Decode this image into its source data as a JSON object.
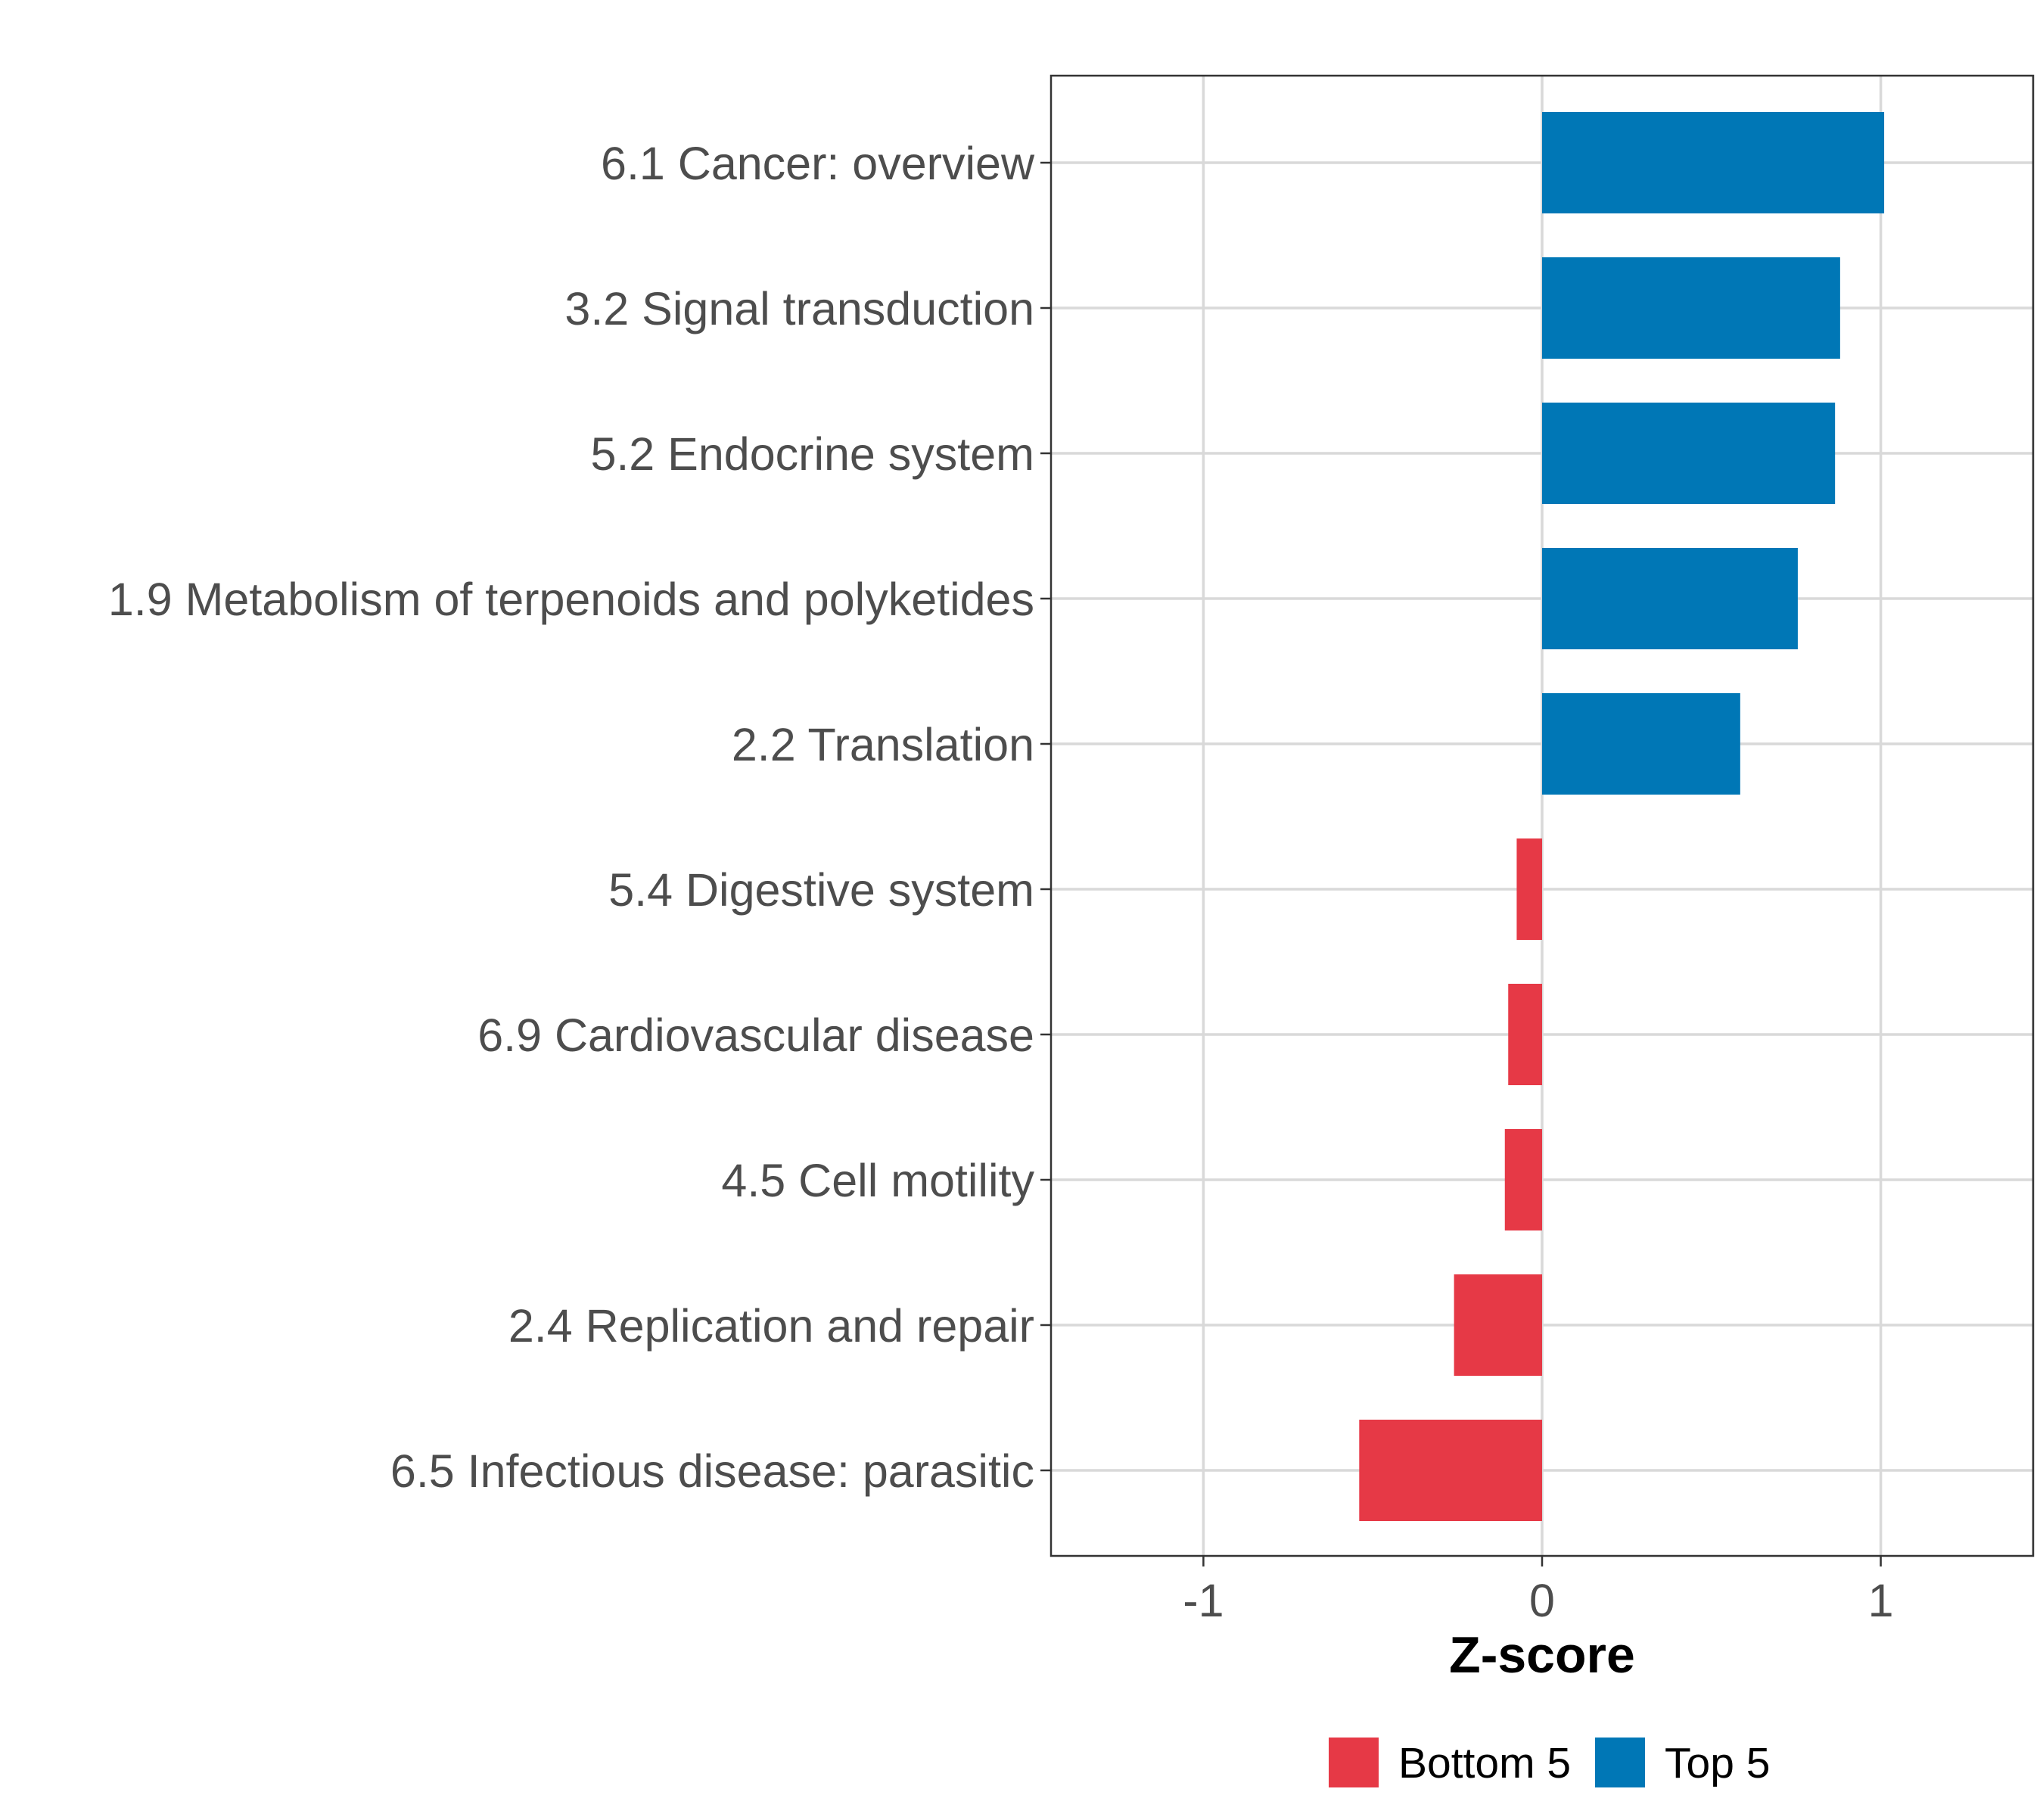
{
  "chart_data": {
    "type": "bar",
    "orientation": "horizontal",
    "xlabel": "Z-score",
    "ylabel": "",
    "xlim": [
      -1.45,
      1.45
    ],
    "xticks": [
      -1,
      0,
      1
    ],
    "grid": true,
    "legend_position": "bottom",
    "categories": [
      "6.1 Cancer: overview",
      "3.2 Signal transduction",
      "5.2 Endocrine system",
      "1.9 Metabolism of terpenoids and polyketides",
      "2.2 Translation",
      "5.4 Digestive system",
      "6.9 Cardiovascular disease",
      "4.5 Cell motility",
      "2.4 Replication and repair",
      "6.5 Infectious disease: parasitic"
    ],
    "values": [
      1.01,
      0.88,
      0.865,
      0.755,
      0.585,
      -0.075,
      -0.1,
      -0.11,
      -0.26,
      -0.54
    ],
    "groups": [
      "Top 5",
      "Top 5",
      "Top 5",
      "Top 5",
      "Top 5",
      "Bottom 5",
      "Bottom 5",
      "Bottom 5",
      "Bottom 5",
      "Bottom 5"
    ],
    "legend": [
      {
        "name": "Bottom 5",
        "color": "#E63946"
      },
      {
        "name": "Top 5",
        "color": "#0077B6"
      }
    ]
  }
}
